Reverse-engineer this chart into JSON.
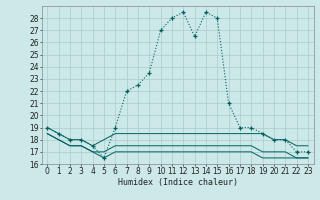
{
  "bg_color": "#cce8e8",
  "grid_color": "#aacccc",
  "line_color": "#006060",
  "xlabel": "Humidex (Indice chaleur)",
  "xlim": [
    -0.5,
    23.5
  ],
  "ylim": [
    16,
    29
  ],
  "xticks": [
    0,
    1,
    2,
    3,
    4,
    5,
    6,
    7,
    8,
    9,
    10,
    11,
    12,
    13,
    14,
    15,
    16,
    17,
    18,
    19,
    20,
    21,
    22,
    23
  ],
  "yticks": [
    16,
    17,
    18,
    19,
    20,
    21,
    22,
    23,
    24,
    25,
    26,
    27,
    28
  ],
  "line1_x": [
    0,
    1,
    2,
    3,
    4,
    5,
    6,
    7,
    8,
    9,
    10,
    11,
    12,
    13,
    14,
    15,
    16,
    17,
    18,
    19,
    20,
    21,
    22,
    23
  ],
  "line1_y": [
    19.0,
    18.5,
    18.0,
    18.0,
    17.5,
    16.5,
    19.0,
    22.0,
    22.5,
    23.5,
    27.0,
    28.0,
    28.5,
    26.5,
    28.5,
    28.0,
    21.0,
    19.0,
    19.0,
    18.5,
    18.0,
    18.0,
    17.0,
    17.0
  ],
  "line2_x": [
    0,
    1,
    2,
    3,
    4,
    5,
    6,
    7,
    8,
    9,
    10,
    11,
    12,
    13,
    14,
    15,
    16,
    17,
    18,
    19,
    20,
    21,
    22,
    23
  ],
  "line2_y": [
    19.0,
    18.5,
    18.0,
    18.0,
    17.5,
    18.0,
    18.5,
    18.5,
    18.5,
    18.5,
    18.5,
    18.5,
    18.5,
    18.5,
    18.5,
    18.5,
    18.5,
    18.5,
    18.5,
    18.5,
    18.0,
    18.0,
    17.5,
    17.5
  ],
  "line3_x": [
    0,
    1,
    2,
    3,
    4,
    5,
    6,
    7,
    8,
    9,
    10,
    11,
    12,
    13,
    14,
    15,
    16,
    17,
    18,
    19,
    20,
    21,
    22,
    23
  ],
  "line3_y": [
    18.5,
    18.0,
    17.5,
    17.5,
    17.0,
    17.0,
    17.5,
    17.5,
    17.5,
    17.5,
    17.5,
    17.5,
    17.5,
    17.5,
    17.5,
    17.5,
    17.5,
    17.5,
    17.5,
    17.0,
    17.0,
    17.0,
    16.5,
    16.5
  ],
  "line4_x": [
    0,
    1,
    2,
    3,
    4,
    5,
    6,
    7,
    8,
    9,
    10,
    11,
    12,
    13,
    14,
    15,
    16,
    17,
    18,
    19,
    20,
    21,
    22,
    23
  ],
  "line4_y": [
    18.5,
    18.0,
    17.5,
    17.5,
    17.0,
    16.5,
    17.0,
    17.0,
    17.0,
    17.0,
    17.0,
    17.0,
    17.0,
    17.0,
    17.0,
    17.0,
    17.0,
    17.0,
    17.0,
    16.5,
    16.5,
    16.5,
    16.5,
    16.5
  ]
}
